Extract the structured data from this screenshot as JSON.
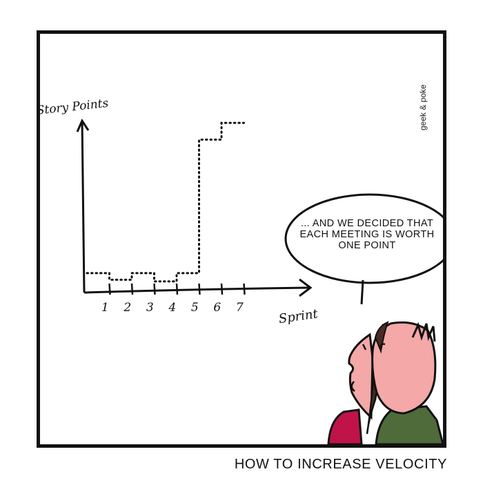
{
  "comic": {
    "credit": "geek & poke",
    "speech": [
      "... AND WE DECIDED THAT",
      "EACH MEETING IS WORTH",
      "ONE POINT"
    ],
    "caption": "HOW TO INCREASE VELOCITY",
    "colors": {
      "ink": "#111111",
      "skin": "#f4a8a8",
      "hair": "#4a2a24",
      "shirt_left": "#c0134a",
      "shirt_right": "#4f6b3a"
    }
  },
  "chart_data": {
    "type": "line",
    "ylabel": "Story Points",
    "xlabel": "Sprint",
    "categories": [
      "1",
      "2",
      "3",
      "4",
      "5",
      "6",
      "7"
    ],
    "series": [
      {
        "values": [
          1,
          0.6,
          1,
          0.5,
          1,
          9,
          10
        ]
      }
    ],
    "ylim": [
      0,
      11
    ],
    "line_style": "dotted",
    "grid": false
  }
}
